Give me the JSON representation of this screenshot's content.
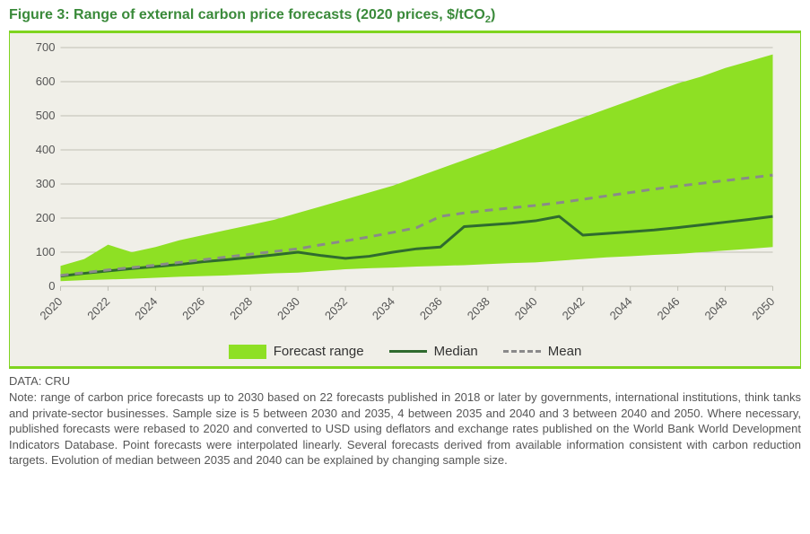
{
  "title_html": "Figure 3: Range of external carbon price forecasts (2020 prices, $/tCO<sub>2</sub>)",
  "source_label": "DATA: CRU",
  "note_text": "Note: range of carbon price forecasts up to 2030 based on 22 forecasts published in 2018 or later by governments, international institutions, think tanks and private-sector businesses. Sample size is 5 between 2030 and 2035, 4 between 2035 and 2040 and 3 between 2040 and 2050. Where necessary, published forecasts were rebased to 2020 and converted to USD using deflators and exchange rates published on the World Bank World Development Indicators Database. Point forecasts were interpolated linearly. Several forecasts derived from available information consistent with carbon reduction targets. Evolution of median between 2035 and 2040 can be explained by changing sample size.",
  "legend": {
    "range": "Forecast range",
    "median": "Median",
    "mean": "Mean"
  },
  "chart": {
    "type": "line-with-band",
    "background_color": "#f0efe8",
    "frame_accent": "#7fd41f",
    "text_color": "#555555",
    "grid_color": "#bfbfb5",
    "axis_fontsize": 13,
    "legend_fontsize": 15,
    "title_fontsize": 16,
    "title_color": "#3a8a3a",
    "xlim": [
      2020,
      2050
    ],
    "ylim": [
      0,
      700
    ],
    "ytick_step": 100,
    "xtick_step": 2,
    "xtick_rotation_deg": -45,
    "x": [
      2020,
      2021,
      2022,
      2023,
      2024,
      2025,
      2026,
      2027,
      2028,
      2029,
      2030,
      2031,
      2032,
      2033,
      2034,
      2035,
      2036,
      2037,
      2038,
      2039,
      2040,
      2041,
      2042,
      2043,
      2044,
      2045,
      2046,
      2047,
      2048,
      2049,
      2050
    ],
    "range_low": [
      15,
      18,
      20,
      22,
      25,
      28,
      30,
      32,
      35,
      38,
      40,
      45,
      50,
      53,
      55,
      58,
      60,
      62,
      65,
      68,
      70,
      75,
      80,
      85,
      88,
      92,
      95,
      100,
      105,
      110,
      115
    ],
    "range_high": [
      60,
      80,
      122,
      100,
      115,
      135,
      150,
      165,
      180,
      195,
      215,
      235,
      255,
      275,
      295,
      320,
      345,
      370,
      395,
      420,
      445,
      470,
      495,
      520,
      545,
      570,
      595,
      615,
      640,
      660,
      680
    ],
    "median": [
      30,
      38,
      45,
      52,
      58,
      64,
      72,
      78,
      85,
      92,
      100,
      90,
      82,
      88,
      100,
      110,
      115,
      175,
      180,
      185,
      192,
      205,
      150,
      155,
      160,
      165,
      172,
      180,
      188,
      196,
      205
    ],
    "mean": [
      32,
      40,
      48,
      55,
      62,
      70,
      78,
      86,
      94,
      102,
      110,
      122,
      133,
      145,
      158,
      172,
      205,
      215,
      223,
      230,
      237,
      245,
      255,
      265,
      275,
      285,
      294,
      302,
      310,
      318,
      326
    ],
    "colors": {
      "range_fill": "#8ee024",
      "median_line": "#2f6b2f",
      "mean_line": "#8a8a8a"
    },
    "line_widths": {
      "median": 3,
      "mean": 3
    },
    "mean_dash": "9 7"
  }
}
